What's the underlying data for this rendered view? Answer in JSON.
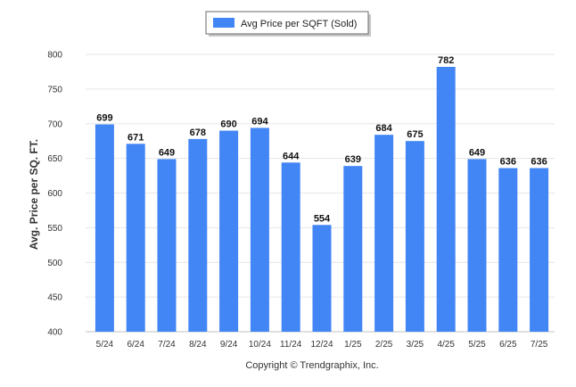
{
  "chart_data": {
    "type": "bar",
    "categories": [
      "5/24",
      "6/24",
      "7/24",
      "8/24",
      "9/24",
      "10/24",
      "11/24",
      "12/24",
      "1/25",
      "2/25",
      "3/25",
      "4/25",
      "5/25",
      "6/25",
      "7/25"
    ],
    "series": [
      {
        "name": "Avg Price per SQFT (Sold)",
        "values": [
          699,
          671,
          649,
          678,
          690,
          694,
          644,
          554,
          639,
          684,
          675,
          782,
          649,
          636,
          636
        ],
        "color": "#4285f4"
      }
    ],
    "xlabel": "",
    "ylabel": "Avg. Price per SQ. FT.",
    "ylim": [
      400,
      800
    ],
    "yticks": [
      400,
      450,
      500,
      550,
      600,
      650,
      700,
      750,
      800
    ],
    "grid": true,
    "legend": "top-center",
    "data_labels": true
  },
  "footer": {
    "copyright": "Copyright © Trendgraphix, Inc."
  }
}
